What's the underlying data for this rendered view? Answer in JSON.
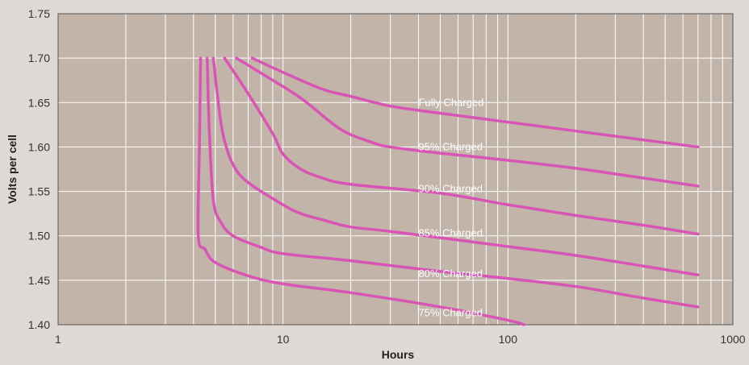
{
  "chart_data": {
    "type": "line",
    "xlabel": "Hours",
    "ylabel": "Volts per cell",
    "xscale": "log",
    "xlim": [
      1,
      1000
    ],
    "ylim": [
      1.4,
      1.75
    ],
    "x_ticks": [
      1,
      10,
      100,
      1000
    ],
    "x_tick_labels": [
      "1",
      "10",
      "100",
      "1000"
    ],
    "y_ticks": [
      1.4,
      1.45,
      1.5,
      1.55,
      1.6,
      1.65,
      1.7,
      1.75
    ],
    "y_tick_labels": [
      "1.40",
      "1.45",
      "1.50",
      "1.55",
      "1.60",
      "1.65",
      "1.70",
      "1.75"
    ],
    "grid": true,
    "colors": {
      "background": "#ded9d5",
      "plot_area": "#c2b4a9",
      "grid": "#ffffff",
      "line": "#d955b5"
    },
    "series": [
      {
        "name": "Fully Charged",
        "label_at": [
          40,
          1.65
        ],
        "points": [
          [
            7.3,
            1.7
          ],
          [
            10,
            1.684
          ],
          [
            15,
            1.665
          ],
          [
            20,
            1.657
          ],
          [
            30,
            1.646
          ],
          [
            50,
            1.638
          ],
          [
            100,
            1.628
          ],
          [
            200,
            1.618
          ],
          [
            400,
            1.608
          ],
          [
            700,
            1.6
          ]
        ]
      },
      {
        "name": "95% Charged",
        "label_at": [
          40,
          1.6
        ],
        "points": [
          [
            6.2,
            1.7
          ],
          [
            8,
            1.683
          ],
          [
            12,
            1.655
          ],
          [
            18,
            1.62
          ],
          [
            25,
            1.605
          ],
          [
            30,
            1.6
          ],
          [
            50,
            1.593
          ],
          [
            100,
            1.585
          ],
          [
            200,
            1.576
          ],
          [
            400,
            1.565
          ],
          [
            700,
            1.556
          ]
        ]
      },
      {
        "name": "90% Charged",
        "label_at": [
          40,
          1.553
        ],
        "points": [
          [
            5.5,
            1.7
          ],
          [
            7,
            1.66
          ],
          [
            9,
            1.615
          ],
          [
            10,
            1.592
          ],
          [
            12,
            1.575
          ],
          [
            15,
            1.565
          ],
          [
            20,
            1.558
          ],
          [
            50,
            1.548
          ],
          [
            100,
            1.535
          ],
          [
            200,
            1.523
          ],
          [
            400,
            1.512
          ],
          [
            700,
            1.502
          ]
        ]
      },
      {
        "name": "85% Charged",
        "label_at": [
          40,
          1.503
        ],
        "points": [
          [
            4.9,
            1.7
          ],
          [
            5.1,
            1.66
          ],
          [
            5.4,
            1.615
          ],
          [
            6,
            1.58
          ],
          [
            7,
            1.56
          ],
          [
            10,
            1.535
          ],
          [
            12,
            1.525
          ],
          [
            15,
            1.518
          ],
          [
            20,
            1.51
          ],
          [
            30,
            1.505
          ],
          [
            100,
            1.488
          ],
          [
            200,
            1.478
          ],
          [
            400,
            1.466
          ],
          [
            700,
            1.456
          ]
        ]
      },
      {
        "name": "80% Charged",
        "label_at": [
          40,
          1.457
        ],
        "points": [
          [
            4.6,
            1.7
          ],
          [
            4.7,
            1.62
          ],
          [
            4.9,
            1.54
          ],
          [
            5.3,
            1.515
          ],
          [
            6,
            1.5
          ],
          [
            8,
            1.487
          ],
          [
            10,
            1.48
          ],
          [
            20,
            1.472
          ],
          [
            50,
            1.46
          ],
          [
            100,
            1.452
          ],
          [
            200,
            1.443
          ],
          [
            400,
            1.43
          ],
          [
            700,
            1.42
          ]
        ]
      },
      {
        "name": "75% Charged",
        "label_at": [
          40,
          1.413
        ],
        "points": [
          [
            4.3,
            1.7
          ],
          [
            4.25,
            1.6
          ],
          [
            4.2,
            1.5
          ],
          [
            4.5,
            1.485
          ],
          [
            5,
            1.47
          ],
          [
            7,
            1.455
          ],
          [
            10,
            1.446
          ],
          [
            20,
            1.436
          ],
          [
            50,
            1.42
          ],
          [
            100,
            1.405
          ],
          [
            118,
            1.4
          ]
        ]
      }
    ]
  }
}
